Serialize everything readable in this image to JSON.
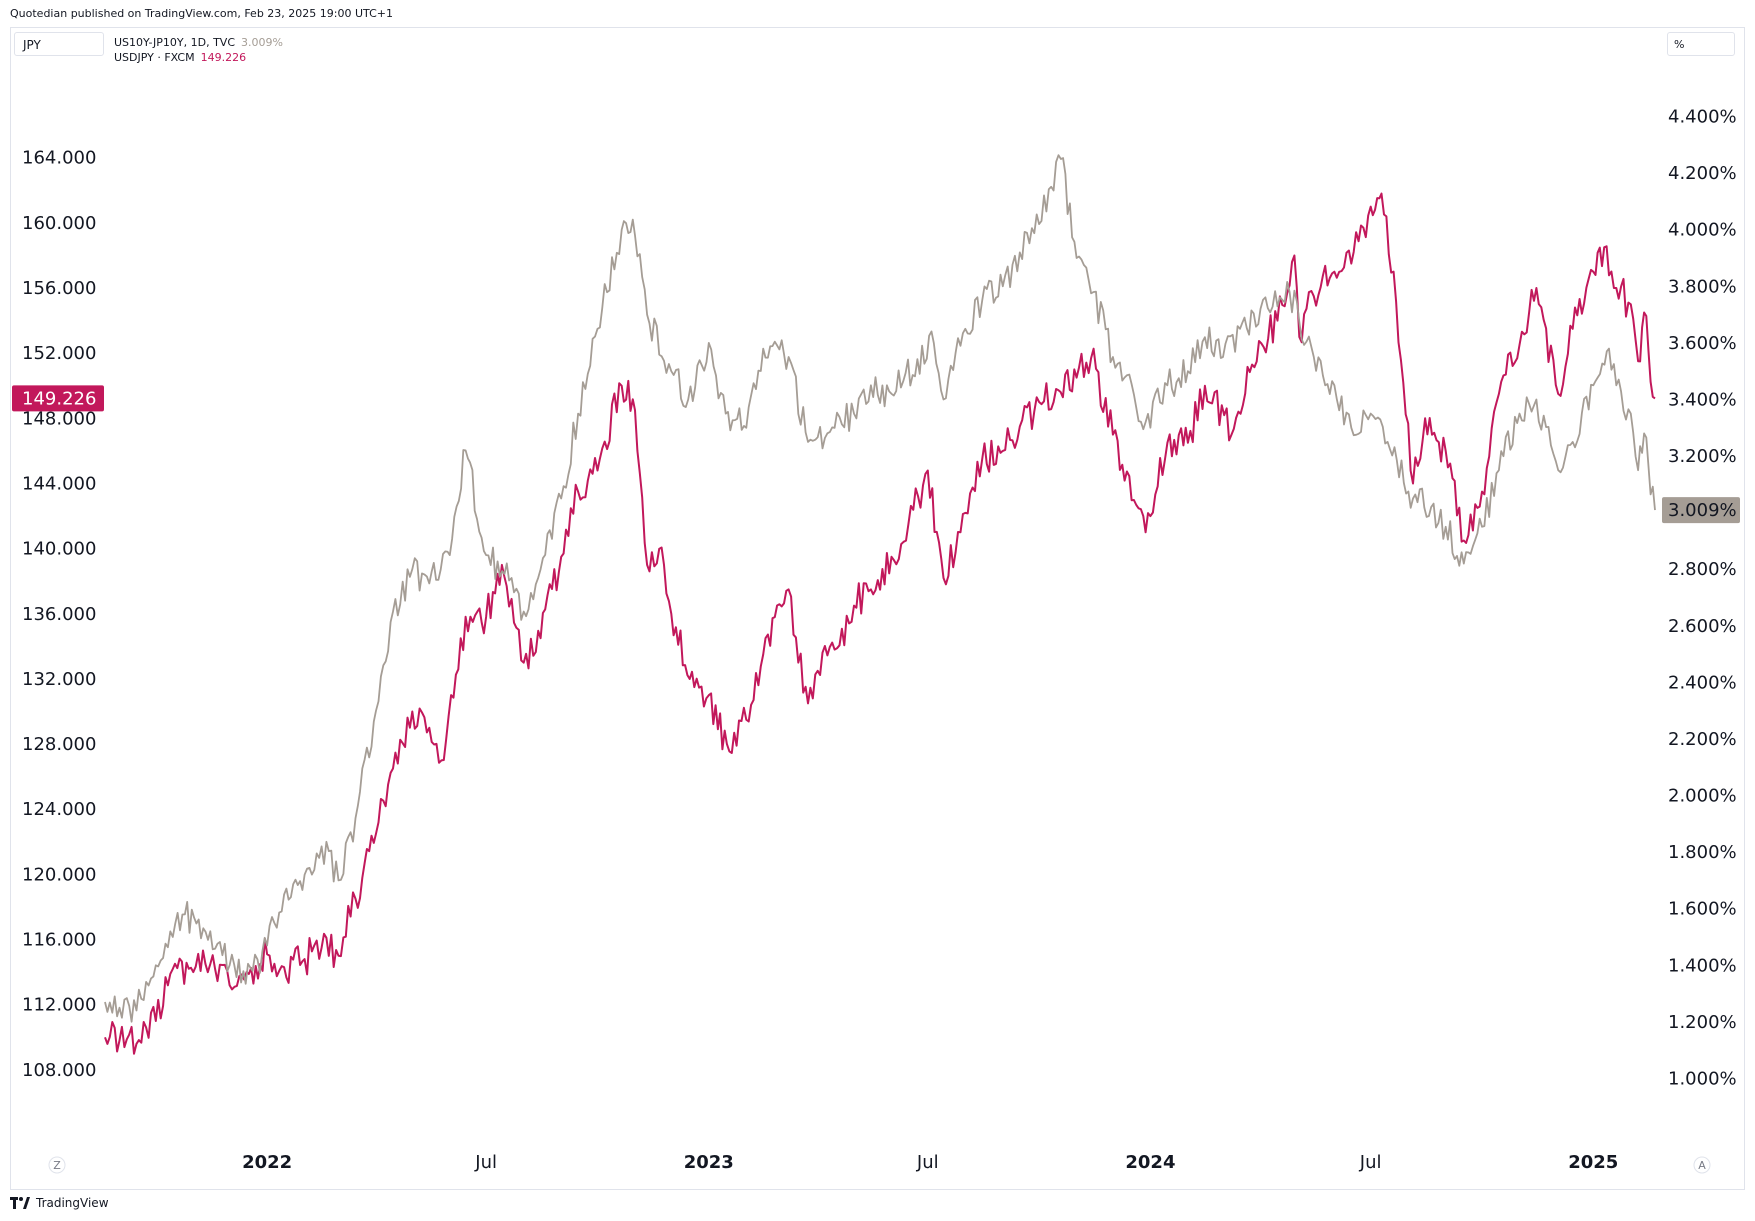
{
  "header": {
    "publisher_line": "Quotedian published on TradingView.com, Feb 23, 2025 19:00 UTC+1"
  },
  "toolbar": {
    "symbol_box": "JPY",
    "scale_box": "%",
    "left_button": "Z",
    "right_button": "A"
  },
  "legend": {
    "series1_label": "US10Y-JP10Y, 1D, TVC",
    "series1_value": "3.009%",
    "series2_label": "USDJPY · FXCM",
    "series2_value": "149.226"
  },
  "footer": {
    "brand": "TradingView"
  },
  "colors": {
    "usdjpy": "#c2185b",
    "spread": "#a59d95",
    "grid": "#eef0f3"
  },
  "chart_data": {
    "type": "line",
    "x_tick_labels": [
      "2022",
      "Jul",
      "2023",
      "Jul",
      "2024",
      "Jul",
      "2025"
    ],
    "x_ticks": [
      "2022-01-01",
      "2022-07-01",
      "2023-01-01",
      "2023-07-01",
      "2024-01-01",
      "2024-07-01",
      "2025-01-01"
    ],
    "xlim": [
      "2021-08-20",
      "2025-02-21"
    ],
    "left_axis": {
      "series": "USDJPY · FXCM",
      "ylim": [
        104.0,
        170.0
      ],
      "ticks": [
        108,
        112,
        116,
        120,
        124,
        128,
        132,
        136,
        140,
        144,
        148,
        152,
        156,
        160,
        164
      ],
      "tick_labels": [
        "108.000",
        "112.000",
        "116.000",
        "120.000",
        "124.000",
        "128.000",
        "132.000",
        "136.000",
        "140.000",
        "144.000",
        "148.000",
        "152.000",
        "156.000",
        "160.000",
        "164.000"
      ],
      "last_value_label": "149.226"
    },
    "right_axis": {
      "series": "US10Y-JP10Y, 1D, TVC",
      "unit": "%",
      "ylim": [
        0.8,
        4.6
      ],
      "ticks": [
        1.0,
        1.2,
        1.4,
        1.6,
        1.8,
        2.0,
        2.2,
        2.4,
        2.6,
        2.8,
        3.0,
        3.2,
        3.4,
        3.6,
        3.8,
        4.0,
        4.2,
        4.4
      ],
      "tick_labels": [
        "1.000%",
        "1.200%",
        "1.400%",
        "1.600%",
        "1.800%",
        "2.000%",
        "2.200%",
        "2.400%",
        "2.600%",
        "2.800%",
        "",
        "3.200%",
        "3.400%",
        "3.600%",
        "3.800%",
        "4.000%",
        "4.200%",
        "4.400%"
      ],
      "last_value_label": "3.009%"
    },
    "series": [
      {
        "name": "USDJPY · FXCM",
        "axis": "left",
        "points": [
          [
            "2021-08-20",
            110.0
          ],
          [
            "2021-09-01",
            109.8
          ],
          [
            "2021-09-15",
            109.6
          ],
          [
            "2021-10-01",
            111.0
          ],
          [
            "2021-10-15",
            114.2
          ],
          [
            "2021-11-01",
            114.0
          ],
          [
            "2021-11-15",
            114.5
          ],
          [
            "2021-12-01",
            113.2
          ],
          [
            "2021-12-15",
            114.0
          ],
          [
            "2022-01-01",
            115.1
          ],
          [
            "2022-01-15",
            114.3
          ],
          [
            "2022-02-01",
            114.8
          ],
          [
            "2022-02-15",
            115.5
          ],
          [
            "2022-03-01",
            115.0
          ],
          [
            "2022-03-15",
            118.5
          ],
          [
            "2022-04-01",
            122.5
          ],
          [
            "2022-04-15",
            126.5
          ],
          [
            "2022-05-01",
            130.0
          ],
          [
            "2022-05-15",
            129.0
          ],
          [
            "2022-05-25",
            127.0
          ],
          [
            "2022-06-10",
            134.5
          ],
          [
            "2022-06-20",
            135.5
          ],
          [
            "2022-07-01",
            135.8
          ],
          [
            "2022-07-14",
            139.0
          ],
          [
            "2022-08-01",
            133.0
          ],
          [
            "2022-08-15",
            134.5
          ],
          [
            "2022-09-01",
            139.5
          ],
          [
            "2022-09-15",
            143.5
          ],
          [
            "2022-10-01",
            144.8
          ],
          [
            "2022-10-21",
            150.0
          ],
          [
            "2022-11-01",
            148.5
          ],
          [
            "2022-11-11",
            139.0
          ],
          [
            "2022-11-25",
            139.0
          ],
          [
            "2022-12-01",
            136.0
          ],
          [
            "2022-12-20",
            131.5
          ],
          [
            "2023-01-01",
            131.0
          ],
          [
            "2023-01-16",
            128.0
          ],
          [
            "2023-02-01",
            129.5
          ],
          [
            "2023-02-15",
            133.5
          ],
          [
            "2023-03-08",
            137.5
          ],
          [
            "2023-03-24",
            130.5
          ],
          [
            "2023-04-01",
            132.5
          ],
          [
            "2023-04-15",
            133.8
          ],
          [
            "2023-05-01",
            136.5
          ],
          [
            "2023-05-15",
            137.5
          ],
          [
            "2023-06-01",
            139.5
          ],
          [
            "2023-06-15",
            141.5
          ],
          [
            "2023-07-01",
            144.8
          ],
          [
            "2023-07-14",
            138.2
          ],
          [
            "2023-07-28",
            141.0
          ],
          [
            "2023-08-15",
            145.5
          ],
          [
            "2023-09-01",
            146.0
          ],
          [
            "2023-09-15",
            147.5
          ],
          [
            "2023-10-01",
            149.0
          ],
          [
            "2023-10-15",
            149.8
          ],
          [
            "2023-11-01",
            150.5
          ],
          [
            "2023-11-13",
            151.7
          ],
          [
            "2023-12-01",
            147.0
          ],
          [
            "2023-12-28",
            141.0
          ],
          [
            "2024-01-15",
            146.5
          ],
          [
            "2024-02-01",
            146.5
          ],
          [
            "2024-02-15",
            150.0
          ],
          [
            "2024-03-08",
            147.0
          ],
          [
            "2024-03-25",
            151.3
          ],
          [
            "2024-04-15",
            154.0
          ],
          [
            "2024-04-29",
            158.0
          ],
          [
            "2024-05-03",
            153.0
          ],
          [
            "2024-05-15",
            155.5
          ],
          [
            "2024-06-01",
            157.0
          ],
          [
            "2024-06-15",
            157.5
          ],
          [
            "2024-07-01",
            161.0
          ],
          [
            "2024-07-10",
            161.8
          ],
          [
            "2024-07-20",
            157.0
          ],
          [
            "2024-08-05",
            144.0
          ],
          [
            "2024-08-15",
            148.0
          ],
          [
            "2024-09-01",
            146.0
          ],
          [
            "2024-09-16",
            140.5
          ],
          [
            "2024-10-01",
            143.5
          ],
          [
            "2024-10-15",
            149.5
          ],
          [
            "2024-11-01",
            152.5
          ],
          [
            "2024-11-15",
            156.0
          ],
          [
            "2024-12-03",
            149.5
          ],
          [
            "2024-12-15",
            153.5
          ],
          [
            "2025-01-01",
            157.0
          ],
          [
            "2025-01-10",
            158.5
          ],
          [
            "2025-01-20",
            156.0
          ],
          [
            "2025-02-01",
            155.0
          ],
          [
            "2025-02-07",
            151.5
          ],
          [
            "2025-02-12",
            154.5
          ],
          [
            "2025-02-21",
            149.226
          ]
        ]
      },
      {
        "name": "US10Y-JP10Y, 1D, TVC",
        "axis": "right",
        "points": [
          [
            "2021-08-20",
            1.27
          ],
          [
            "2021-09-01",
            1.25
          ],
          [
            "2021-09-15",
            1.24
          ],
          [
            "2021-10-01",
            1.4
          ],
          [
            "2021-10-15",
            1.5
          ],
          [
            "2021-10-25",
            1.58
          ],
          [
            "2021-11-15",
            1.52
          ],
          [
            "2021-12-01",
            1.4
          ],
          [
            "2021-12-20",
            1.38
          ],
          [
            "2022-01-01",
            1.47
          ],
          [
            "2022-01-15",
            1.65
          ],
          [
            "2022-02-01",
            1.72
          ],
          [
            "2022-02-15",
            1.82
          ],
          [
            "2022-03-01",
            1.7
          ],
          [
            "2022-03-15",
            1.92
          ],
          [
            "2022-04-01",
            2.3
          ],
          [
            "2022-04-15",
            2.65
          ],
          [
            "2022-05-01",
            2.8
          ],
          [
            "2022-05-15",
            2.75
          ],
          [
            "2022-06-01",
            2.85
          ],
          [
            "2022-06-14",
            3.22
          ],
          [
            "2022-07-01",
            2.85
          ],
          [
            "2022-07-20",
            2.76
          ],
          [
            "2022-08-01",
            2.65
          ],
          [
            "2022-08-15",
            2.8
          ],
          [
            "2022-09-01",
            3.05
          ],
          [
            "2022-09-15",
            3.35
          ],
          [
            "2022-10-01",
            3.65
          ],
          [
            "2022-10-21",
            4.0
          ],
          [
            "2022-11-01",
            3.98
          ],
          [
            "2022-11-11",
            3.7
          ],
          [
            "2022-12-01",
            3.5
          ],
          [
            "2022-12-15",
            3.4
          ],
          [
            "2023-01-01",
            3.6
          ],
          [
            "2023-01-15",
            3.35
          ],
          [
            "2023-02-01",
            3.3
          ],
          [
            "2023-02-15",
            3.58
          ],
          [
            "2023-03-08",
            3.55
          ],
          [
            "2023-03-24",
            3.25
          ],
          [
            "2023-04-15",
            3.3
          ],
          [
            "2023-05-01",
            3.35
          ],
          [
            "2023-05-15",
            3.45
          ],
          [
            "2023-06-01",
            3.42
          ],
          [
            "2023-07-06",
            3.6
          ],
          [
            "2023-07-14",
            3.4
          ],
          [
            "2023-08-01",
            3.65
          ],
          [
            "2023-08-15",
            3.75
          ],
          [
            "2023-09-01",
            3.8
          ],
          [
            "2023-09-15",
            3.92
          ],
          [
            "2023-10-01",
            4.02
          ],
          [
            "2023-10-19",
            4.25
          ],
          [
            "2023-11-01",
            3.9
          ],
          [
            "2023-11-15",
            3.78
          ],
          [
            "2023-12-01",
            3.55
          ],
          [
            "2023-12-28",
            3.32
          ],
          [
            "2024-01-15",
            3.45
          ],
          [
            "2024-02-01",
            3.5
          ],
          [
            "2024-02-15",
            3.62
          ],
          [
            "2024-03-01",
            3.55
          ],
          [
            "2024-03-15",
            3.65
          ],
          [
            "2024-04-01",
            3.72
          ],
          [
            "2024-04-25",
            3.78
          ],
          [
            "2024-05-15",
            3.55
          ],
          [
            "2024-06-01",
            3.45
          ],
          [
            "2024-06-15",
            3.3
          ],
          [
            "2024-07-01",
            3.35
          ],
          [
            "2024-07-15",
            3.25
          ],
          [
            "2024-08-05",
            3.05
          ],
          [
            "2024-08-20",
            3.02
          ],
          [
            "2024-09-01",
            2.95
          ],
          [
            "2024-09-16",
            2.82
          ],
          [
            "2024-10-01",
            2.95
          ],
          [
            "2024-10-15",
            3.15
          ],
          [
            "2024-11-01",
            3.35
          ],
          [
            "2024-11-15",
            3.4
          ],
          [
            "2024-12-03",
            3.15
          ],
          [
            "2024-12-15",
            3.25
          ],
          [
            "2025-01-01",
            3.45
          ],
          [
            "2025-01-14",
            3.58
          ],
          [
            "2025-01-20",
            3.45
          ],
          [
            "2025-02-01",
            3.35
          ],
          [
            "2025-02-07",
            3.15
          ],
          [
            "2025-02-12",
            3.28
          ],
          [
            "2025-02-21",
            3.009
          ]
        ]
      }
    ],
    "grid": false,
    "legend_position": "top-left"
  }
}
